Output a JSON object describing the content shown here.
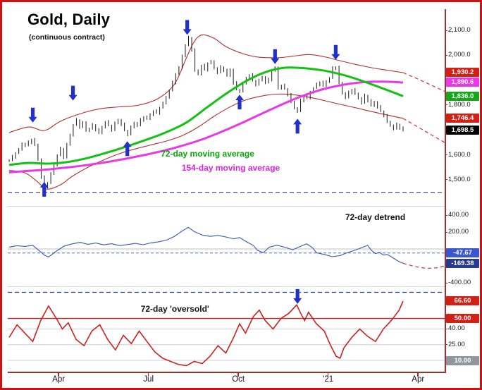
{
  "title": "Gold, Daily",
  "subtitle": "(continuous contract)",
  "colors": {
    "border": "#c81414",
    "axis": "#a03030",
    "price_bars": "#1a1a1a",
    "ma72": "#12c112",
    "ma154": "#e838e8",
    "envelope": "#b03030",
    "projection_dashed": "#cc3333",
    "detrend_line": "#3a56a8",
    "oversold_line": "#cc2020",
    "threshold_red": "#cc2222",
    "dashed_navy": "#27408b",
    "arrow_blue": "#2030c8",
    "grid": "#ccd0d8",
    "zero_line": "#c0c0c0",
    "dashed_blue_level": "#4466dd"
  },
  "x_axis": {
    "labels": [
      {
        "text": "Apr",
        "f": 0.1255
      },
      {
        "text": "Jul",
        "f": 0.3536
      },
      {
        "text": "Oct",
        "f": 0.5817
      },
      {
        "text": "'21",
        "f": 0.8098
      },
      {
        "text": "Apr",
        "f": 1.038
      }
    ]
  },
  "chart_data": [
    {
      "type": "bar",
      "panel": "price",
      "title": "Gold, Daily (continuous contract)",
      "ylim": [
        1398,
        2185
      ],
      "yticks": [
        {
          "label": "2,100.0",
          "v": 2100
        },
        {
          "label": "2,000.0",
          "v": 2000
        },
        {
          "label": "1,800.0",
          "v": 1800
        },
        {
          "label": "1,600.0",
          "v": 1600
        },
        {
          "label": "1,500.0",
          "v": 1500
        }
      ],
      "badges": [
        {
          "label": "1,930.2",
          "v": 1930.2,
          "bg": "#d22015"
        },
        {
          "label": "1,890.6",
          "v": 1890.6,
          "bg": "#e838e8"
        },
        {
          "label": "1,836.0",
          "v": 1836.0,
          "bg": "#17a617"
        },
        {
          "label": "1,746.4",
          "v": 1746.4,
          "bg": "#d22015"
        },
        {
          "label": "1,698.5",
          "v": 1698.5,
          "bg": "#000000"
        }
      ],
      "support_dashed_level": 1450,
      "series": {
        "price_close": [
          1578,
          1592,
          1608,
          1622,
          1645,
          1638,
          1650,
          1662,
          1640,
          1582,
          1510,
          1472,
          1488,
          1525,
          1560,
          1598,
          1625,
          1590,
          1642,
          1680,
          1720,
          1740,
          1712,
          1730,
          1698,
          1705,
          1720,
          1702,
          1688,
          1712,
          1732,
          1718,
          1700,
          1728,
          1740,
          1722,
          1698,
          1682,
          1712,
          1728,
          1718,
          1740,
          1752,
          1745,
          1762,
          1775,
          1768,
          1790,
          1808,
          1832,
          1858,
          1890,
          1925,
          1950,
          1998,
          2040,
          2070,
          2022,
          1938,
          1925,
          1958,
          1942,
          1968,
          1975,
          1948,
          1930,
          1952,
          1940,
          1918,
          1942,
          1888,
          1862,
          1855,
          1888,
          1908,
          1920,
          1898,
          1882,
          1900,
          1912,
          1890,
          1902,
          1938,
          1950,
          1868,
          1878,
          1865,
          1842,
          1812,
          1788,
          1775,
          1818,
          1838,
          1828,
          1852,
          1868,
          1882,
          1892,
          1878,
          1895,
          1908,
          1948,
          1952,
          1888,
          1848,
          1830,
          1850,
          1862,
          1845,
          1828,
          1808,
          1838,
          1818,
          1798,
          1812,
          1792,
          1775,
          1758,
          1732,
          1718,
          1705,
          1722,
          1708,
          1698.5
        ],
        "ma72": {
          "label": "72-day moving average",
          "current": 1836.0,
          "values": [
            1560,
            1568,
            1565,
            1572,
            1588,
            1610,
            1635,
            1662,
            1692,
            1730,
            1788,
            1845,
            1895,
            1932,
            1950,
            1948,
            1938,
            1920,
            1895,
            1866,
            1836
          ]
        },
        "ma154": {
          "label": "154-day moving average",
          "current": 1890.6,
          "values": [
            1530,
            1536,
            1542,
            1550,
            1560,
            1572,
            1586,
            1602,
            1620,
            1642,
            1668,
            1700,
            1735,
            1772,
            1808,
            1840,
            1865,
            1882,
            1892,
            1894,
            1890.6
          ]
        },
        "env_upper": {
          "current": 1930.2,
          "points": [
            [
              0,
              1690
            ],
            [
              0.05,
              1712
            ],
            [
              0.09,
              1698
            ],
            [
              0.13,
              1735
            ],
            [
              0.18,
              1765
            ],
            [
              0.23,
              1785
            ],
            [
              0.28,
              1793
            ],
            [
              0.33,
              1800
            ],
            [
              0.38,
              1828
            ],
            [
              0.42,
              1885
            ],
            [
              0.45,
              1990
            ],
            [
              0.47,
              2055
            ],
            [
              0.49,
              2082
            ],
            [
              0.52,
              2068
            ],
            [
              0.55,
              2035
            ],
            [
              0.59,
              2008
            ],
            [
              0.63,
              1993
            ],
            [
              0.68,
              1990
            ],
            [
              0.72,
              1996
            ],
            [
              0.76,
              2003
            ],
            [
              0.8,
              1994
            ],
            [
              0.84,
              1978
            ],
            [
              0.88,
              1963
            ],
            [
              0.92,
              1950
            ],
            [
              0.96,
              1940
            ],
            [
              1,
              1930.2
            ]
          ],
          "projection": [
            [
              1,
              1930.2
            ],
            [
              1.04,
              1903
            ],
            [
              1.08,
              1874
            ],
            [
              1.11,
              1852
            ]
          ]
        },
        "env_lower": {
          "current": 1746.4,
          "points": [
            [
              0,
              1538
            ],
            [
              0.04,
              1528
            ],
            [
              0.07,
              1495
            ],
            [
              0.095,
              1463
            ],
            [
              0.13,
              1480
            ],
            [
              0.16,
              1514
            ],
            [
              0.2,
              1550
            ],
            [
              0.24,
              1580
            ],
            [
              0.28,
              1605
            ],
            [
              0.32,
              1624
            ],
            [
              0.36,
              1640
            ],
            [
              0.4,
              1656
            ],
            [
              0.44,
              1678
            ],
            [
              0.48,
              1712
            ],
            [
              0.52,
              1755
            ],
            [
              0.56,
              1792
            ],
            [
              0.6,
              1820
            ],
            [
              0.64,
              1836
            ],
            [
              0.68,
              1844
            ],
            [
              0.72,
              1842
            ],
            [
              0.76,
              1832
            ],
            [
              0.8,
              1818
            ],
            [
              0.84,
              1803
            ],
            [
              0.88,
              1789
            ],
            [
              0.92,
              1774
            ],
            [
              0.96,
              1760
            ],
            [
              1,
              1746.4
            ]
          ],
          "projection": [
            [
              1,
              1746.4
            ],
            [
              1.04,
              1710
            ],
            [
              1.08,
              1673
            ],
            [
              1.11,
              1646
            ]
          ]
        }
      },
      "arrows": [
        {
          "f": 0.06,
          "v": 1730,
          "dir": "down"
        },
        {
          "f": 0.089,
          "v": 1492,
          "dir": "up"
        },
        {
          "f": 0.162,
          "v": 1818,
          "dir": "down"
        },
        {
          "f": 0.3,
          "v": 1655,
          "dir": "up"
        },
        {
          "f": 0.452,
          "v": 2082,
          "dir": "down"
        },
        {
          "f": 0.585,
          "v": 1842,
          "dir": "up"
        },
        {
          "f": 0.675,
          "v": 1965,
          "dir": "down"
        },
        {
          "f": 0.732,
          "v": 1745,
          "dir": "up"
        },
        {
          "f": 0.829,
          "v": 1982,
          "dir": "down"
        }
      ],
      "annotations": [
        {
          "text": "72-day moving average",
          "f": 0.385,
          "v": 1605,
          "color": "#0aa50a"
        },
        {
          "text": "154-day moving average",
          "f": 0.438,
          "v": 1548,
          "color": "#dd22dd"
        }
      ]
    },
    {
      "type": "line",
      "panel": "detrend",
      "ylim": [
        -433,
        500
      ],
      "yticks": [
        {
          "label": "400.00",
          "v": 400
        },
        {
          "label": "200.00",
          "v": 200
        },
        {
          "label": "-400.00",
          "v": -400
        }
      ],
      "badges": [
        {
          "label": "-47.67",
          "v": -47.67,
          "bg": "#3b57d0"
        },
        {
          "label": "-169.38",
          "v": -169.38,
          "bg": "#263b8f"
        }
      ],
      "zero_line": 0,
      "dashed_blue_level": -47.67,
      "current": -169.38,
      "series": {
        "detrend": [
          [
            0,
            22
          ],
          [
            0.02,
            38
          ],
          [
            0.04,
            30
          ],
          [
            0.06,
            42
          ],
          [
            0.075,
            -15
          ],
          [
            0.09,
            -75
          ],
          [
            0.1,
            -95
          ],
          [
            0.12,
            -25
          ],
          [
            0.14,
            35
          ],
          [
            0.16,
            60
          ],
          [
            0.18,
            78
          ],
          [
            0.2,
            55
          ],
          [
            0.22,
            70
          ],
          [
            0.24,
            48
          ],
          [
            0.26,
            62
          ],
          [
            0.28,
            40
          ],
          [
            0.3,
            52
          ],
          [
            0.32,
            66
          ],
          [
            0.34,
            50
          ],
          [
            0.36,
            72
          ],
          [
            0.38,
            85
          ],
          [
            0.4,
            105
          ],
          [
            0.42,
            150
          ],
          [
            0.44,
            215
          ],
          [
            0.455,
            255
          ],
          [
            0.47,
            205
          ],
          [
            0.49,
            165
          ],
          [
            0.51,
            148
          ],
          [
            0.53,
            160
          ],
          [
            0.55,
            142
          ],
          [
            0.57,
            120
          ],
          [
            0.585,
            135
          ],
          [
            0.6,
            92
          ],
          [
            0.62,
            40
          ],
          [
            0.63,
            -15
          ],
          [
            0.645,
            -45
          ],
          [
            0.66,
            20
          ],
          [
            0.68,
            45
          ],
          [
            0.7,
            20
          ],
          [
            0.72,
            -10
          ],
          [
            0.74,
            32
          ],
          [
            0.755,
            60
          ],
          [
            0.77,
            15
          ],
          [
            0.78,
            -45
          ],
          [
            0.8,
            -65
          ],
          [
            0.82,
            -92
          ],
          [
            0.84,
            -78
          ],
          [
            0.86,
            -42
          ],
          [
            0.88,
            -12
          ],
          [
            0.9,
            25
          ],
          [
            0.91,
            42
          ],
          [
            0.92,
            -18
          ],
          [
            0.93,
            -55
          ],
          [
            0.94,
            -40
          ],
          [
            0.95,
            -72
          ],
          [
            0.96,
            -65
          ],
          [
            0.97,
            -92
          ],
          [
            0.98,
            -122
          ],
          [
            0.99,
            -150
          ],
          [
            1,
            -169.38
          ]
        ],
        "projection": [
          [
            1,
            -169.38
          ],
          [
            1.03,
            -208
          ],
          [
            1.06,
            -230
          ],
          [
            1.09,
            -222
          ],
          [
            1.115,
            -185
          ]
        ]
      },
      "annotations": [
        {
          "text": "72-day detrend",
          "f": 0.853,
          "v": 375,
          "color": "#111111"
        }
      ]
    },
    {
      "type": "line",
      "panel": "oversold",
      "ylim": [
        -2,
        80
      ],
      "yticks": [
        {
          "label": "40.00",
          "v": 40
        },
        {
          "label": "25.00",
          "v": 25
        }
      ],
      "badges": [
        {
          "label": "66.60",
          "v": 66.6,
          "bg": "#d22015"
        },
        {
          "label": "50.00",
          "v": 50,
          "bg": "#d22015"
        },
        {
          "label": "10.00",
          "v": 10,
          "bg": "#8f969e"
        }
      ],
      "gridlines": [
        40,
        25,
        10
      ],
      "threshold_red_level": 50,
      "dashed_navy_level": 75,
      "current": 66.6,
      "series": {
        "oversold": [
          [
            0,
            32
          ],
          [
            0.02,
            44
          ],
          [
            0.04,
            36
          ],
          [
            0.06,
            28
          ],
          [
            0.08,
            48
          ],
          [
            0.1,
            62
          ],
          [
            0.12,
            50
          ],
          [
            0.135,
            40
          ],
          [
            0.15,
            46
          ],
          [
            0.17,
            30
          ],
          [
            0.19,
            24
          ],
          [
            0.21,
            38
          ],
          [
            0.23,
            44
          ],
          [
            0.25,
            30
          ],
          [
            0.27,
            20
          ],
          [
            0.29,
            34
          ],
          [
            0.31,
            26
          ],
          [
            0.33,
            38
          ],
          [
            0.35,
            28
          ],
          [
            0.37,
            18
          ],
          [
            0.39,
            12
          ],
          [
            0.41,
            9
          ],
          [
            0.43,
            6
          ],
          [
            0.45,
            5
          ],
          [
            0.47,
            9
          ],
          [
            0.49,
            7
          ],
          [
            0.51,
            14
          ],
          [
            0.53,
            24
          ],
          [
            0.55,
            17
          ],
          [
            0.57,
            32
          ],
          [
            0.585,
            45
          ],
          [
            0.6,
            36
          ],
          [
            0.62,
            52
          ],
          [
            0.635,
            58
          ],
          [
            0.65,
            48
          ],
          [
            0.67,
            40
          ],
          [
            0.69,
            50
          ],
          [
            0.71,
            55
          ],
          [
            0.73,
            63
          ],
          [
            0.74,
            55
          ],
          [
            0.75,
            48
          ],
          [
            0.76,
            56
          ],
          [
            0.78,
            45
          ],
          [
            0.8,
            38
          ],
          [
            0.815,
            25
          ],
          [
            0.83,
            14
          ],
          [
            0.84,
            12
          ],
          [
            0.85,
            22
          ],
          [
            0.87,
            32
          ],
          [
            0.89,
            40
          ],
          [
            0.91,
            33
          ],
          [
            0.93,
            28
          ],
          [
            0.95,
            40
          ],
          [
            0.97,
            48
          ],
          [
            0.99,
            58
          ],
          [
            1,
            66.6
          ]
        ]
      },
      "arrows": [
        {
          "f": 0.732,
          "v": 64,
          "dir": "down"
        }
      ],
      "annotations": [
        {
          "text": "72-day 'oversold'",
          "f": 0.334,
          "v": 59,
          "color": "#111111"
        }
      ]
    }
  ]
}
